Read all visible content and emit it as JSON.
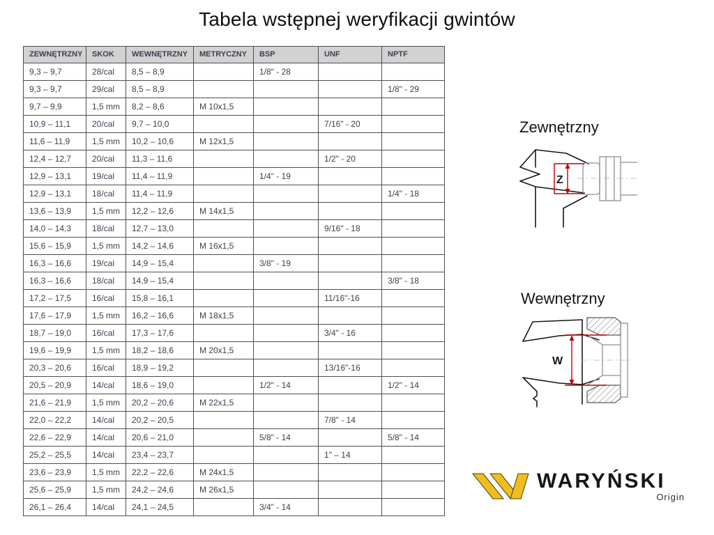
{
  "title": "Tabela wstępnej weryfikacji gwintów",
  "table": {
    "headers": [
      "ZEWNĘTRZNY",
      "SKOK",
      "WEWNĘTRZNY",
      "METRYCZNY",
      "BSP",
      "UNF",
      "NPTF"
    ],
    "rows": [
      [
        "9,3 – 9,7",
        "28/cal",
        "8,5 – 8,9",
        "",
        "1/8\" - 28",
        "",
        ""
      ],
      [
        "9,3 – 9,7",
        "29/cal",
        "8,5 – 8,9",
        "",
        "",
        "",
        "1/8\" - 29"
      ],
      [
        "9,7 – 9,9",
        "1,5 mm",
        "8,2 – 8,6",
        "M 10x1,5",
        "",
        "",
        ""
      ],
      [
        "10,9 – 11,1",
        "20/cal",
        "9,7 – 10,0",
        "",
        "",
        "7/16\" - 20",
        ""
      ],
      [
        "11,6 – 11,9",
        "1,5 mm",
        "10,2 – 10,6",
        "M 12x1,5",
        "",
        "",
        ""
      ],
      [
        "12,4 – 12,7",
        "20/cal",
        "11,3 – 11,6",
        "",
        "",
        "1/2\" - 20",
        ""
      ],
      [
        "12,9 – 13,1",
        "19/cal",
        "11,4 – 11,9",
        "",
        "1/4\" - 19",
        "",
        ""
      ],
      [
        "12,9 – 13,1",
        "18/cal",
        "11,4 – 11,9",
        "",
        "",
        "",
        "1/4\" - 18"
      ],
      [
        "13,6 – 13,9",
        "1,5 mm",
        "12,2 – 12,6",
        "M 14x1,5",
        "",
        "",
        ""
      ],
      [
        "14,0 – 14,3",
        "18/cal",
        "12,7 – 13,0",
        "",
        "",
        "9/16\" - 18",
        ""
      ],
      [
        "15,6 – 15,9",
        "1,5 mm",
        "14,2 – 14,6",
        "M 16x1,5",
        "",
        "",
        ""
      ],
      [
        "16,3 – 16,6",
        "19/cal",
        "14,9 – 15,4",
        "",
        "3/8\" - 19",
        "",
        ""
      ],
      [
        "16,3 – 16,6",
        "18/cal",
        "14,9 – 15,4",
        "",
        "",
        "",
        "3/8\" - 18"
      ],
      [
        "17,2 – 17,5",
        "16/cal",
        "15,8 – 16,1",
        "",
        "",
        "11/16\"-16",
        ""
      ],
      [
        "17,6 – 17,9",
        "1,5 mm",
        "16,2 – 16,6",
        "M 18x1,5",
        "",
        "",
        ""
      ],
      [
        "18,7 – 19,0",
        "16/cal",
        "17,3 – 17,6",
        "",
        "",
        "3/4\" - 16",
        ""
      ],
      [
        "19,6 – 19,9",
        "1,5 mm",
        "18,2 – 18,6",
        "M 20x1,5",
        "",
        "",
        ""
      ],
      [
        "20,3 – 20,6",
        "16/cal",
        "18,9 – 19,2",
        "",
        "",
        "13/16\"-16",
        ""
      ],
      [
        "20,5 – 20,9",
        "14/cal",
        "18,6 – 19,0",
        "",
        "1/2\" - 14",
        "",
        "1/2\" - 14"
      ],
      [
        "21,6 – 21,9",
        "1,5 mm",
        "20,2 – 20,6",
        "M 22x1,5",
        "",
        "",
        ""
      ],
      [
        "22,0 – 22,2",
        "14/cal",
        "20,2 – 20,5",
        "",
        "",
        "7/8\" - 14",
        ""
      ],
      [
        "22,6 – 22,9",
        "14/cal",
        "20,6 – 21,0",
        "",
        "5/8\" - 14",
        "",
        "5/8\" - 14"
      ],
      [
        "25,2 – 25,5",
        "14/cal",
        "23,4 – 23,7",
        "",
        "",
        "1\" – 14",
        ""
      ],
      [
        "23,6 – 23,9",
        "1,5 mm",
        "22,2 – 22,6",
        "M 24x1,5",
        "",
        "",
        ""
      ],
      [
        "25,6 – 25,9",
        "1,5 mm",
        "24,2 – 24,6",
        "M 26x1,5",
        "",
        "",
        ""
      ],
      [
        "26,1 – 26,4",
        "14/cal",
        "24,1 – 24,5",
        "",
        "3/4\" - 14",
        "",
        ""
      ]
    ]
  },
  "diagrams": {
    "external": {
      "label": "Zewnętrzny",
      "dimension_letter": "Z"
    },
    "internal": {
      "label": "Wewnętrzny",
      "dimension_letter": "W"
    }
  },
  "logo": {
    "brand": "WARYŃSKI",
    "subtitle": "Origin"
  },
  "colors": {
    "header_bg": "#d2d2d2",
    "border": "#4d4d4d",
    "cell_text": "#39404e",
    "accent_red": "#c00000",
    "brand_yellow": "#efbd1f",
    "line_gray": "#8a9097"
  }
}
